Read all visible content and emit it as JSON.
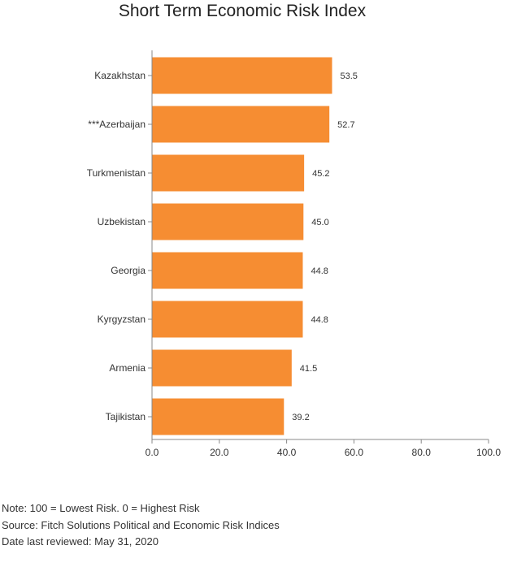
{
  "chart_data": {
    "type": "bar",
    "orientation": "horizontal",
    "title": "Short Term Economic Risk Index",
    "xlabel": "",
    "ylabel": "",
    "categories": [
      "Kazakhstan",
      "***Azerbaijan",
      "Turkmenistan",
      "Uzbekistan",
      "Georgia",
      "Kyrgyzstan",
      "Armenia",
      "Tajikistan"
    ],
    "values": [
      53.5,
      52.7,
      45.2,
      45.0,
      44.8,
      44.8,
      41.5,
      39.2
    ],
    "value_labels": [
      "53.5",
      "52.7",
      "45.2",
      "45.0",
      "44.8",
      "44.8",
      "41.5",
      "39.2"
    ],
    "xlim": [
      0,
      100
    ],
    "x_ticks": [
      "0.0",
      "20.0",
      "40.0",
      "60.0",
      "80.0",
      "100.0"
    ],
    "grid": false,
    "bar_color": "#f68d32"
  },
  "notes": {
    "note": "Note: 100 = Lowest Risk. 0 = Highest Risk",
    "source": "Source: Fitch Solutions Political and Economic Risk Indices",
    "date": "Date last reviewed: May 31, 2020"
  }
}
